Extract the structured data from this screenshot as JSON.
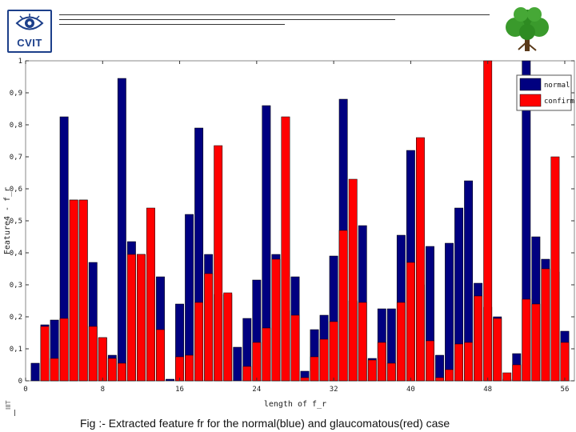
{
  "header": {
    "logo_text": "CVIT"
  },
  "caption": "Fig :- Extracted feature fr for the normal(blue) and glaucomatous(red) case",
  "page_number": "IIIT",
  "colors": {
    "normal": "#000080",
    "confirm": "#ff0000",
    "plot_bg": "#ffffff",
    "logo_blue": "#1c3f8a",
    "tree_green": "#2e8b22"
  },
  "chart_data": {
    "type": "bar",
    "xlabel": "length of f_r",
    "ylabel": "Feature4 - f_r",
    "xlim": [
      0,
      57
    ],
    "ylim": [
      0,
      1
    ],
    "xticks": [
      0,
      8,
      16,
      24,
      32,
      40,
      48,
      56
    ],
    "yticks": [
      0,
      0.1,
      0.2,
      0.3,
      0.4,
      0.5,
      0.6,
      0.7,
      0.8,
      0.9,
      1
    ],
    "ytick_labels": [
      "0",
      "0,1",
      "0,2",
      "0,3",
      "0,4",
      "0,5",
      "0,6",
      "0,7",
      "0,8",
      "0,9",
      "1"
    ],
    "legend_position": "top-right",
    "grid": false,
    "x": [
      1,
      2,
      3,
      4,
      5,
      6,
      7,
      8,
      9,
      10,
      11,
      12,
      13,
      14,
      15,
      16,
      17,
      18,
      19,
      20,
      21,
      22,
      23,
      24,
      25,
      26,
      27,
      28,
      29,
      30,
      31,
      32,
      33,
      34,
      35,
      36,
      37,
      38,
      39,
      40,
      41,
      42,
      43,
      44,
      45,
      46,
      47,
      48,
      49,
      50,
      51,
      52,
      53,
      54,
      55,
      56
    ],
    "series": [
      {
        "name": "normal",
        "values": [
          0.055,
          0.175,
          0.19,
          0.825,
          0.565,
          0.565,
          0.37,
          0.135,
          0.08,
          0.945,
          0.435,
          0.395,
          0.315,
          0.325,
          0.005,
          0.24,
          0.52,
          0.79,
          0.395,
          0.27,
          0.27,
          0.105,
          0.195,
          0.315,
          0.86,
          0.395,
          0.22,
          0.325,
          0.03,
          0.16,
          0.205,
          0.39,
          0.88,
          0.25,
          0.485,
          0.07,
          0.225,
          0.225,
          0.455,
          0.72,
          0.3,
          0.42,
          0.08,
          0.43,
          0.54,
          0.625,
          0.305,
          0.23,
          0.2,
          0.005,
          0.085,
          1.0,
          0.45,
          0.38,
          0.34,
          0.155
        ]
      },
      {
        "name": "confirm",
        "values": [
          0,
          0.17,
          0.07,
          0.195,
          0.565,
          0.565,
          0.17,
          0.135,
          0.07,
          0.055,
          0.395,
          0.395,
          0.54,
          0.16,
          0,
          0.075,
          0.08,
          0.245,
          0.335,
          0.735,
          0.275,
          0,
          0.045,
          0.12,
          0.165,
          0.38,
          0.825,
          0.205,
          0.01,
          0.075,
          0.13,
          0.185,
          0.47,
          0.63,
          0.245,
          0.065,
          0.12,
          0.055,
          0.245,
          0.37,
          0.76,
          0.125,
          0.01,
          0.035,
          0.115,
          0.12,
          0.265,
          1.0,
          0.195,
          0.025,
          0.05,
          0.255,
          0.24,
          0.35,
          0.7,
          0.12
        ]
      }
    ]
  }
}
